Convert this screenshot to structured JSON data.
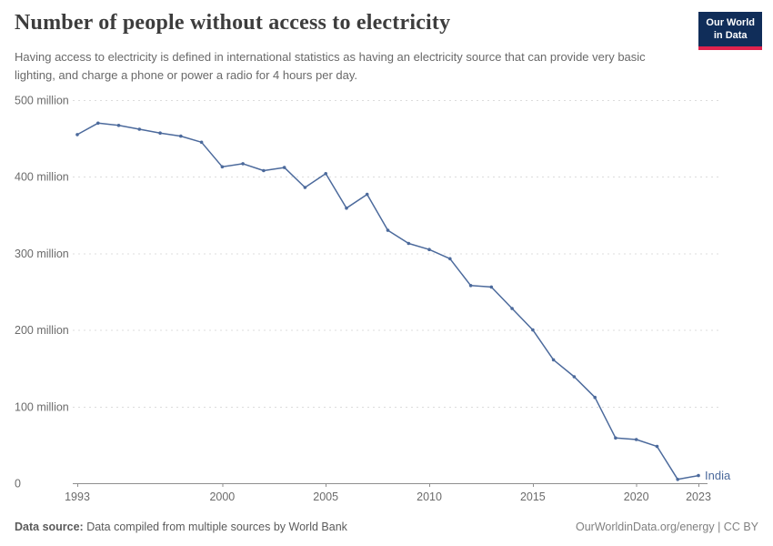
{
  "header": {
    "title": "Number of people without access to electricity",
    "subtitle": "Having access to electricity is defined in international statistics as having an electricity source that can provide very basic lighting, and charge a phone or power a radio for 4 hours per day.",
    "logo": {
      "line1": "Our World",
      "line2": "in Data",
      "bg_color": "#102D59",
      "accent_color": "#E0234E"
    }
  },
  "chart_data": {
    "type": "line",
    "title": "Number of people without access to electricity",
    "xlabel": "",
    "ylabel": "",
    "unit": "people",
    "grid": true,
    "legend_position": "end-of-line",
    "xlim": [
      1993,
      2023
    ],
    "ylim": [
      0,
      500000000
    ],
    "y_ticks_millions": [
      0,
      100,
      200,
      300,
      400,
      500
    ],
    "y_tick_labels": [
      "0",
      "100 million",
      "200 million",
      "300 million",
      "400 million",
      "500 million"
    ],
    "x_ticks": [
      1993,
      2000,
      2005,
      2010,
      2015,
      2020,
      2023
    ],
    "x": [
      1993,
      1994,
      1995,
      1996,
      1997,
      1998,
      1999,
      2000,
      2001,
      2002,
      2003,
      2004,
      2005,
      2006,
      2007,
      2008,
      2009,
      2010,
      2011,
      2012,
      2013,
      2014,
      2015,
      2016,
      2017,
      2018,
      2019,
      2020,
      2021,
      2022,
      2023
    ],
    "series": [
      {
        "name": "India",
        "color": "#4C6A9C",
        "values_millions": [
          455,
          470,
          467,
          462,
          457,
          453,
          445,
          413,
          417,
          408,
          412,
          386,
          404,
          359,
          377,
          330,
          313,
          305,
          293,
          258,
          256,
          228,
          200,
          161,
          139,
          112,
          59,
          57,
          48,
          5,
          10
        ]
      }
    ]
  },
  "footer": {
    "source_label": "Data source:",
    "source_text": " Data compiled from multiple sources by World Bank",
    "right_text": "OurWorldinData.org/energy | CC BY"
  },
  "style_colors": {
    "line": "#4C6A9C",
    "gridline": "#dcdcdc",
    "axis": "#8f8f8f",
    "tick_label": "#6b6b6b"
  }
}
